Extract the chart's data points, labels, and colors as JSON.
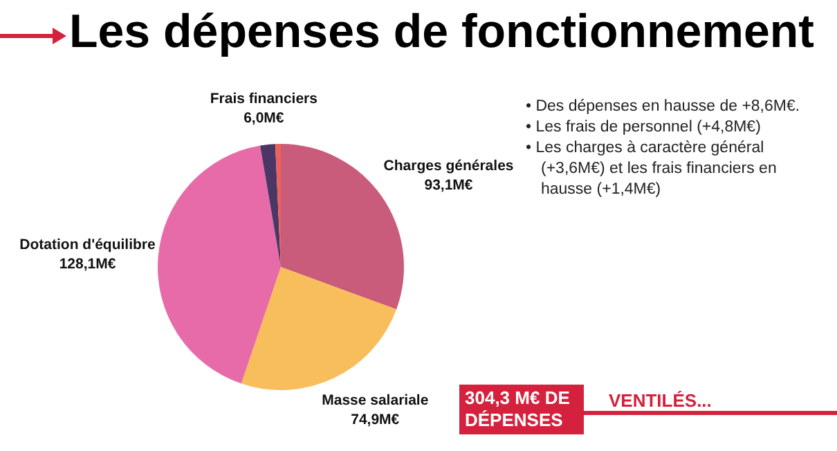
{
  "chart_data": {
    "type": "pie",
    "title": "Les dépenses de fonctionnement",
    "categories": [
      "Charges générales",
      "Masse salariale",
      "Dotation d'équilibre",
      "Frais financiers",
      null
    ],
    "values": [
      93.1,
      74.9,
      128.1,
      6.0,
      2.2
    ],
    "value_labels": [
      "93,1M€",
      "74,9M€",
      "128,1M€",
      "6,0M€",
      null
    ],
    "colors": [
      "#c95c7b",
      "#f9be5c",
      "#e76ba8",
      "#4b3766",
      "#f0605a"
    ],
    "legend": false,
    "annotations": [
      "• Des dépenses en hausse de +8,6M€.",
      "• Les frais de personnel (+4,8M€)",
      "• Les charges à caractère général (+3,6M€) et les frais financiers en hausse (+1,4M€)",
      "304,3 M€ DE DÉPENSES",
      "VENTILÉS..."
    ]
  }
}
